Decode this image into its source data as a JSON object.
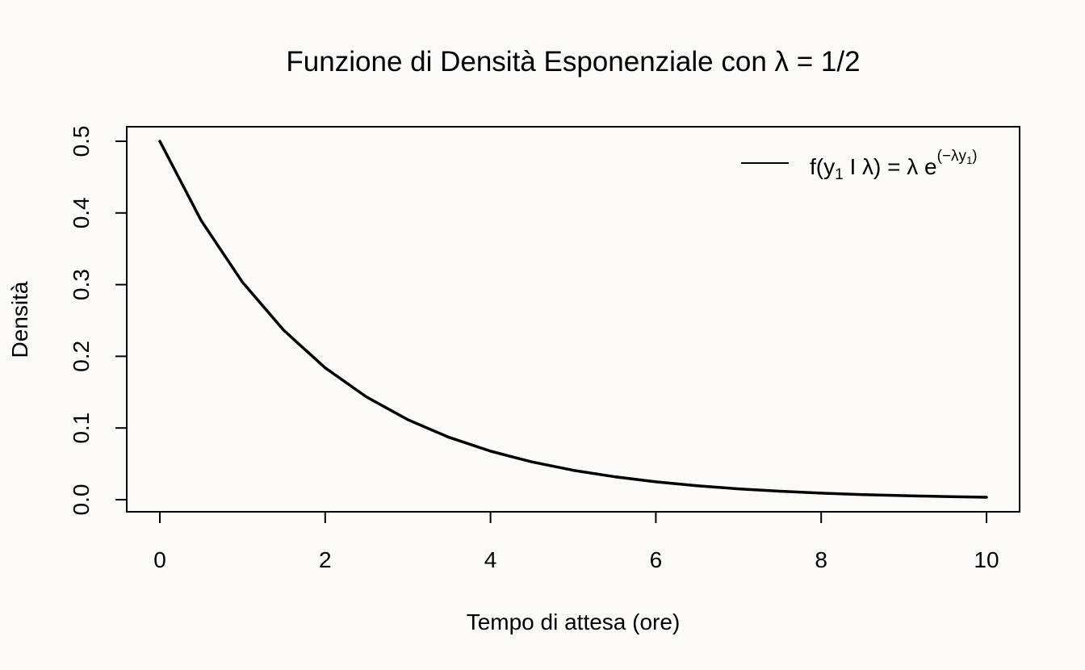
{
  "chart_data": {
    "type": "line",
    "title": "Funzione di Densità Esponenziale con λ = 1/2",
    "xlabel": "Tempo di attesa (ore)",
    "ylabel": "Densità",
    "xlim": [
      0,
      10
    ],
    "ylim": [
      0,
      0.5
    ],
    "x_ticks": [
      0,
      2,
      4,
      6,
      8,
      10
    ],
    "x_tick_labels": [
      "0",
      "2",
      "4",
      "6",
      "8",
      "10"
    ],
    "y_ticks": [
      0,
      0.1,
      0.2,
      0.3,
      0.4,
      0.5
    ],
    "y_tick_labels": [
      "0.0",
      "0.1",
      "0.2",
      "0.3",
      "0.4",
      "0.5"
    ],
    "grid": false,
    "legend_position": "top-right",
    "legend": {
      "f": "f",
      "open_paren": "(",
      "y": "y",
      "sub_one": "1",
      "bar_lambda": " I λ",
      "close_paren": ")",
      "equals_lambda_e": " = λ e",
      "sup_open": "(",
      "sup_neg_lambda_y": "−λy",
      "sup_sub_one": "1",
      "sup_close": ")"
    },
    "series": [
      {
        "color": "#000000",
        "x": [
          0,
          0.5,
          1,
          1.5,
          2,
          2.5,
          3,
          3.5,
          4,
          4.5,
          5,
          5.5,
          6,
          6.5,
          7,
          7.5,
          8,
          8.5,
          9,
          9.5,
          10
        ],
        "y": [
          0.5,
          0.3894,
          0.3033,
          0.2362,
          0.1839,
          0.1433,
          0.1116,
          0.0869,
          0.0677,
          0.0527,
          0.041,
          0.032,
          0.0249,
          0.0194,
          0.0151,
          0.0118,
          0.0092,
          0.0071,
          0.0056,
          0.0043,
          0.0034
        ]
      }
    ]
  }
}
